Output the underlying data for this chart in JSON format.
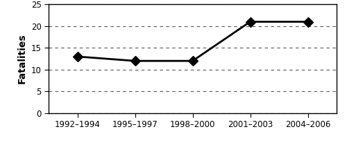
{
  "x_labels": [
    "1992–1994",
    "1995–1997",
    "1998–2000",
    "2001–2003",
    "2004–2006"
  ],
  "x_positions": [
    0,
    1,
    2,
    3,
    4
  ],
  "y_values": [
    13,
    12,
    12,
    21,
    21
  ],
  "ylim": [
    0,
    25
  ],
  "yticks": [
    0,
    5,
    10,
    15,
    20,
    25
  ],
  "ylabel": "Fatalities",
  "line_color": "#000000",
  "marker": "D",
  "marker_size": 7,
  "marker_color": "#000000",
  "line_width": 2.0,
  "grid_color": "#555555",
  "grid_linestyle": "--",
  "grid_linewidth": 0.8,
  "background_color": "#ffffff",
  "ylabel_fontsize": 10,
  "tick_fontsize": 8.5
}
